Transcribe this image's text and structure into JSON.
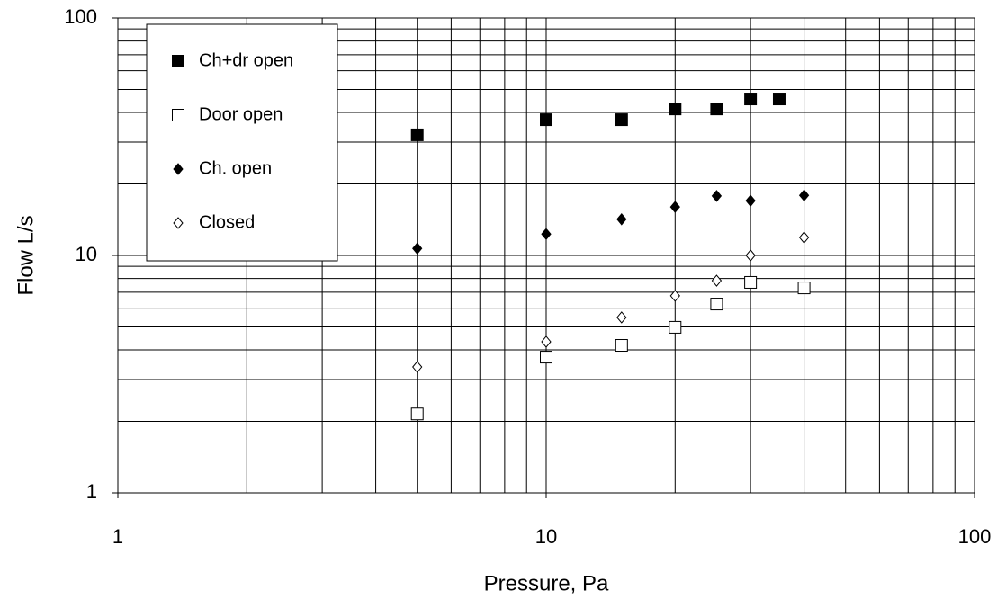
{
  "chart_data": {
    "type": "scatter",
    "x_label": "Pressure, Pa",
    "y_label": "Flow L/s",
    "xlim": [
      1,
      100
    ],
    "ylim": [
      1,
      100
    ],
    "xticks": [
      1,
      10,
      100
    ],
    "yticks": [
      1,
      10,
      100
    ],
    "xscale": "log",
    "yscale": "log",
    "grid": true,
    "minor_grid": true,
    "legend": "upper left",
    "series": [
      {
        "name": "Ch+dr open",
        "marker": "square",
        "filled": true,
        "color": "#000000",
        "x": [
          5,
          10,
          15,
          20,
          25,
          30,
          35
        ],
        "values": [
          32.2,
          37.3,
          37.3,
          41.4,
          41.4,
          45.6,
          45.6
        ]
      },
      {
        "name": "Door open",
        "marker": "square",
        "filled": false,
        "color": "#000000",
        "x": [
          5,
          10,
          15,
          20,
          25,
          30,
          40
        ],
        "values": [
          2.15,
          3.73,
          4.18,
          4.98,
          6.24,
          7.7,
          7.3
        ]
      },
      {
        "name": "Ch. open",
        "marker": "diamond",
        "filled": true,
        "color": "#000000",
        "x": [
          5,
          10,
          15,
          20,
          25,
          30,
          40
        ],
        "values": [
          10.7,
          12.3,
          14.2,
          16.0,
          17.8,
          17.0,
          17.9
        ]
      },
      {
        "name": "Closed",
        "marker": "diamond",
        "filled": false,
        "color": "#000000",
        "x": [
          5,
          10,
          15,
          20,
          25,
          30,
          40
        ],
        "values": [
          3.39,
          4.33,
          5.48,
          6.76,
          7.83,
          10.0,
          11.9
        ]
      }
    ]
  }
}
